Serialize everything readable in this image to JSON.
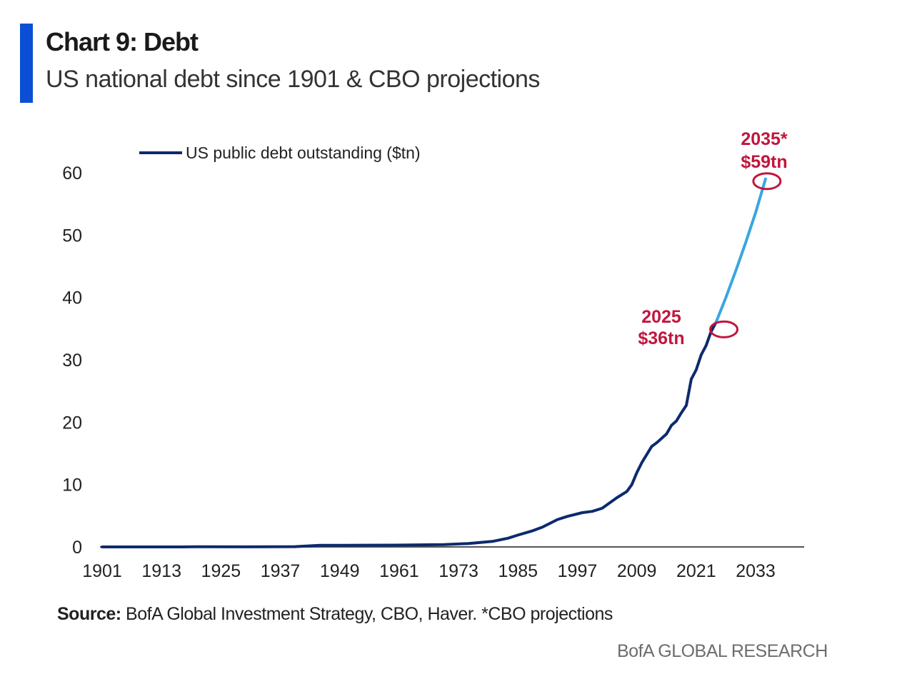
{
  "header": {
    "title": "Chart 9: Debt",
    "subtitle": "US national debt since 1901 & CBO projections"
  },
  "footer": {
    "source_label": "Source:",
    "source_text": "BofA Global Investment Strategy, CBO, Haver. *CBO projections",
    "brand": "BofA GLOBAL RESEARCH"
  },
  "colors": {
    "accent": "#0a4fd6",
    "historical": "#0d2a6e",
    "projection": "#3aa6e0",
    "annotation": "#c0163e"
  },
  "chart_data": {
    "type": "line",
    "title": "US national debt since 1901 & CBO projections",
    "xlabel": "",
    "ylabel": "",
    "xlim": [
      1901,
      2040
    ],
    "ylim": [
      0,
      60
    ],
    "x_ticks": [
      1901,
      1913,
      1925,
      1937,
      1949,
      1961,
      1973,
      1985,
      1997,
      2009,
      2021,
      2033
    ],
    "y_ticks": [
      0,
      10,
      20,
      30,
      40,
      50,
      60
    ],
    "legend": {
      "label": "US public debt outstanding ($tn)",
      "position": "top-left"
    },
    "series": [
      {
        "name": "US public debt outstanding ($tn)",
        "segment": "historical",
        "x": [
          1901,
          1917,
          1920,
          1930,
          1940,
          1945,
          1950,
          1960,
          1970,
          1975,
          1980,
          1983,
          1985,
          1988,
          1990,
          1993,
          1995,
          1998,
          2000,
          2002,
          2005,
          2007,
          2008,
          2009,
          2010,
          2012,
          2013,
          2015,
          2016,
          2017,
          2018,
          2019,
          2020,
          2021,
          2022,
          2023,
          2024,
          2025
        ],
        "values": [
          0.0,
          0.003,
          0.026,
          0.016,
          0.05,
          0.26,
          0.26,
          0.29,
          0.38,
          0.54,
          0.91,
          1.4,
          1.9,
          2.6,
          3.2,
          4.4,
          4.9,
          5.5,
          5.7,
          6.2,
          7.9,
          8.9,
          10.0,
          11.9,
          13.5,
          16.1,
          16.7,
          18.1,
          19.5,
          20.2,
          21.5,
          22.7,
          26.9,
          28.4,
          30.8,
          32.3,
          34.5,
          36.0
        ]
      },
      {
        "name": "CBO projections",
        "segment": "projection",
        "x": [
          2025,
          2027,
          2029,
          2031,
          2033,
          2035
        ],
        "values": [
          36.0,
          40.0,
          44.3,
          48.8,
          53.6,
          59.0
        ]
      }
    ],
    "annotations": [
      {
        "year_label": "2025",
        "value_label": "$36tn",
        "x": 2025,
        "y": 35
      },
      {
        "year_label": "2035*",
        "value_label": "$59tn",
        "x": 2035,
        "y": 59
      }
    ]
  }
}
